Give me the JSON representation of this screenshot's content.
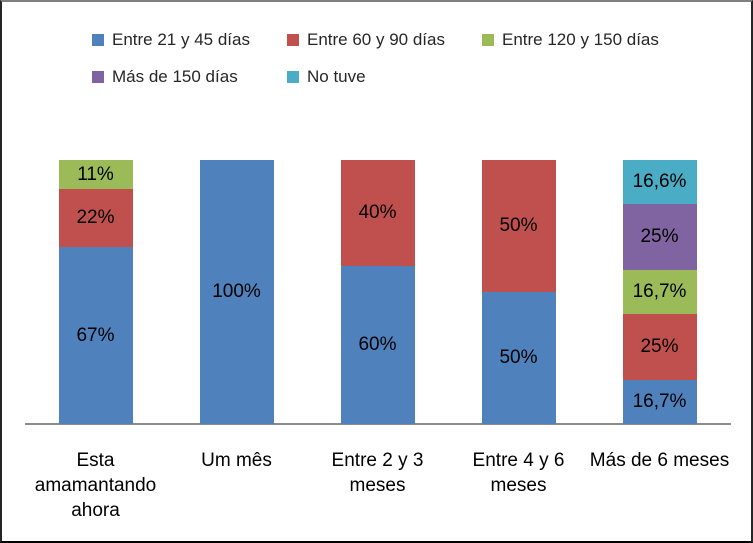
{
  "chart_data": {
    "type": "bar",
    "stacked": true,
    "orientation": "vertical",
    "unit": "percent",
    "title": "",
    "xlabel": "",
    "ylabel": "",
    "ylim": [
      0,
      100
    ],
    "grid": false,
    "y_axis_visible": false,
    "legend_position": "top",
    "axis_line_color": "#8b8b8b",
    "label_color": "#000000",
    "categories": [
      "Esta amamantando ahora",
      "Um mês",
      "Entre 2 y 3 meses",
      "Entre 4 y 6 meses",
      "Más de 6 meses"
    ],
    "category_label_lines": [
      [
        "Esta",
        "amamantando",
        "ahora"
      ],
      [
        "Um mês"
      ],
      [
        "Entre 2 y 3",
        "meses"
      ],
      [
        "Entre 4 y 6",
        "meses"
      ],
      [
        "Más de 6 meses"
      ]
    ],
    "series": [
      {
        "name": "Entre 21 y 45 días",
        "color": "#4F81BD",
        "values": [
          67,
          100,
          60,
          50,
          16.7
        ],
        "labels": [
          "67%",
          "100%",
          "60%",
          "50%",
          "16,7%"
        ]
      },
      {
        "name": "Entre 60 y 90 días",
        "color": "#C0504D",
        "values": [
          22,
          0,
          40,
          50,
          25
        ],
        "labels": [
          "22%",
          "",
          "40%",
          "50%",
          "25%"
        ]
      },
      {
        "name": "Entre 120 y 150 días",
        "color": "#9BBB59",
        "values": [
          11,
          0,
          0,
          0,
          16.7
        ],
        "labels": [
          "11%",
          "",
          "",
          "",
          "16,7%"
        ]
      },
      {
        "name": "Más de 150 días",
        "color": "#8064A2",
        "values": [
          0,
          0,
          0,
          0,
          25
        ],
        "labels": [
          "",
          "",
          "",
          "",
          "25%"
        ]
      },
      {
        "name": "No tuve",
        "color": "#4BACC6",
        "values": [
          0,
          0,
          0,
          0,
          16.6
        ],
        "labels": [
          "",
          "",
          "",
          "",
          "16,6%"
        ]
      }
    ]
  }
}
